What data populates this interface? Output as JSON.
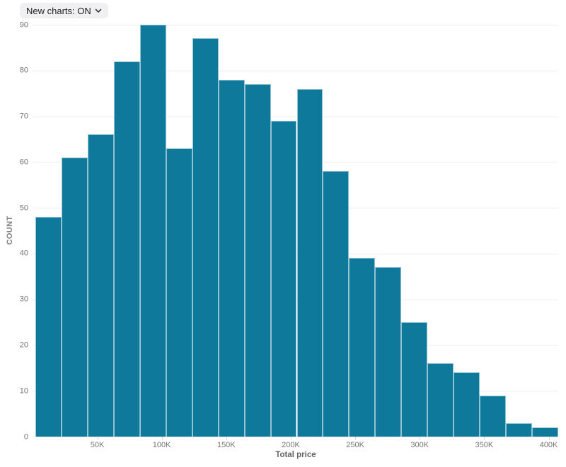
{
  "toolbar": {
    "new_charts_button": {
      "label": "New charts: ON",
      "state": "ON"
    }
  },
  "chart_data": {
    "type": "bar",
    "subtype": "histogram",
    "title": "",
    "xlabel": "Total price",
    "ylabel": "COUNT",
    "ylim": [
      0,
      90
    ],
    "y_ticks": [
      0,
      10,
      20,
      30,
      40,
      50,
      60,
      70,
      80,
      90
    ],
    "x_tick_labels": [
      "50K",
      "100K",
      "150K",
      "200K",
      "250K",
      "300K",
      "350K",
      "400K"
    ],
    "bin_width_label": "20K per bin",
    "values": [
      48,
      61,
      66,
      82,
      90,
      63,
      87,
      78,
      77,
      69,
      76,
      58,
      39,
      37,
      25,
      16,
      14,
      9,
      3,
      2
    ],
    "grid": true,
    "legend": "none",
    "colors": {
      "bar_fill": "#0e799a",
      "bar_stroke": "rgba(255,255,255,0.55)",
      "gridline": "#ededed",
      "tick_label": "#757575",
      "tick_mark": "#d8d8d8",
      "axis_title": "#636363"
    }
  }
}
